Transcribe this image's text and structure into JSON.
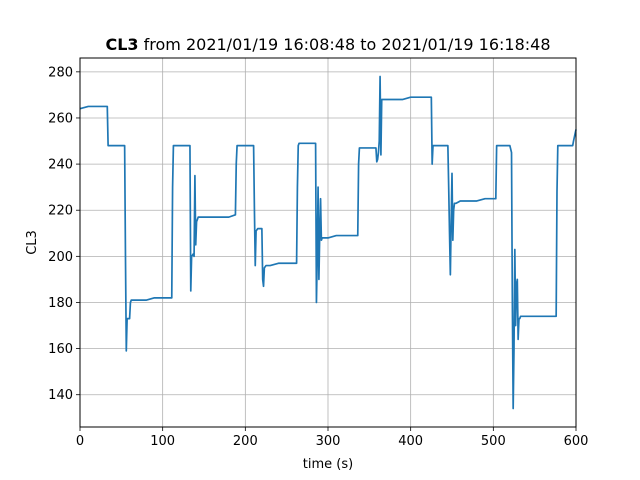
{
  "chart_data": {
    "type": "line",
    "title_bold": "CL3",
    "title_rest": " from 2021/01/19 16:08:48 to 2021/01/19 16:18:48",
    "xlabel": "time (s)",
    "ylabel": "CL3",
    "xlim": [
      0,
      600
    ],
    "ylim": [
      126,
      286
    ],
    "xticks": [
      0,
      100,
      200,
      300,
      400,
      500,
      600
    ],
    "yticks": [
      140,
      160,
      180,
      200,
      220,
      240,
      260,
      280
    ],
    "grid": true,
    "line_color": "#1f77b4",
    "series": [
      {
        "x": [
          0,
          10,
          20,
          30,
          33,
          34,
          35,
          40,
          50,
          54,
          55,
          56,
          57,
          60,
          61,
          62,
          70,
          80,
          90,
          100,
          111,
          112,
          113,
          114,
          115,
          120,
          130,
          133,
          134,
          135,
          137,
          138,
          139,
          140,
          141,
          142,
          143,
          145,
          150,
          160,
          170,
          180,
          188,
          189,
          190,
          200,
          210,
          211,
          212,
          213,
          215,
          220,
          221,
          222,
          223,
          225,
          230,
          240,
          250,
          260,
          262,
          263,
          264,
          265,
          270,
          280,
          285,
          286,
          287,
          288,
          289,
          290,
          291,
          292,
          293,
          294,
          295,
          300,
          310,
          320,
          330,
          336,
          337,
          338,
          340,
          350,
          358,
          359,
          360,
          361,
          362,
          363,
          364,
          365,
          366,
          370,
          380,
          390,
          400,
          410,
          420,
          425,
          426,
          427,
          428,
          430,
          440,
          445,
          446,
          447,
          448,
          449,
          450,
          451,
          452,
          453,
          455,
          460,
          470,
          480,
          490,
          500,
          503,
          504,
          505,
          510,
          520,
          522,
          523,
          524,
          525,
          526,
          527,
          528,
          529,
          530,
          531,
          532,
          533,
          535,
          540,
          550,
          560,
          570,
          575,
          576,
          577,
          578,
          580,
          590,
          595,
          596,
          597,
          600
        ],
        "y": [
          264,
          265,
          265,
          265,
          265,
          248,
          248,
          248,
          248,
          248,
          200,
          159,
          173,
          173,
          180,
          181,
          181,
          181,
          182,
          182,
          182,
          230,
          248,
          248,
          248,
          248,
          248,
          248,
          185,
          200,
          201,
          200,
          235,
          205,
          215,
          216,
          217,
          217,
          217,
          217,
          217,
          217,
          218,
          240,
          248,
          248,
          248,
          220,
          196,
          211,
          212,
          212,
          190,
          187,
          195,
          196,
          196,
          197,
          197,
          197,
          197,
          230,
          248,
          249,
          249,
          249,
          249,
          180,
          200,
          230,
          190,
          210,
          225,
          207,
          208,
          208,
          208,
          208,
          209,
          209,
          209,
          209,
          240,
          247,
          247,
          247,
          247,
          241,
          242,
          245,
          250,
          278,
          244,
          268,
          268,
          268,
          268,
          268,
          269,
          269,
          269,
          269,
          240,
          248,
          248,
          248,
          248,
          248,
          230,
          210,
          192,
          215,
          236,
          207,
          220,
          223,
          223,
          224,
          224,
          224,
          225,
          225,
          225,
          248,
          248,
          248,
          248,
          245,
          180,
          134,
          160,
          203,
          170,
          188,
          190,
          164,
          173,
          173,
          174,
          174,
          174,
          174,
          174,
          174,
          174,
          174,
          228,
          248,
          248,
          248,
          248,
          248,
          250,
          255
        ]
      }
    ]
  }
}
